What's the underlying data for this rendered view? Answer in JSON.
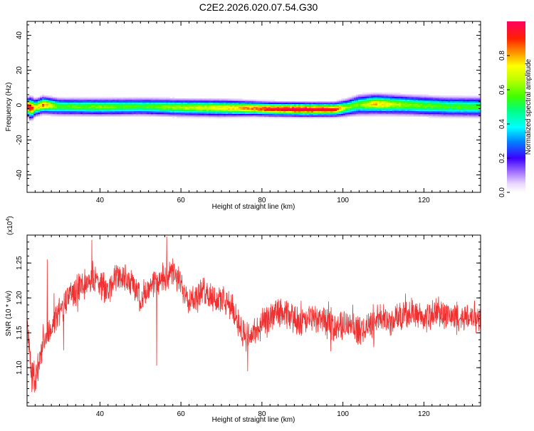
{
  "title": "C2E2.2026.020.07.54.G30",
  "chart_data": [
    {
      "type": "heatmap",
      "xlabel": "Height of straight line (km)",
      "ylabel": "Frequency (Hz)",
      "xlim": [
        22,
        134
      ],
      "ylim": [
        -50,
        48
      ],
      "xticks": [
        40,
        60,
        80,
        100,
        120
      ],
      "yticks": [
        -40,
        -20,
        0,
        20,
        40
      ],
      "colorbar": {
        "label": "Normalized spectral amplitude",
        "range": [
          0,
          1
        ],
        "ticks": [
          0.0,
          0.2,
          0.4,
          0.6,
          0.8
        ]
      },
      "ridge": {
        "height_km": [
          22,
          23,
          24,
          26,
          30,
          40,
          50,
          60,
          70,
          78,
          82,
          90,
          98,
          101,
          104,
          108,
          115,
          125,
          133
        ],
        "peak_frequency_hz": [
          -1,
          -2,
          -1.5,
          0,
          -1,
          -1.2,
          -1,
          -1.5,
          -1.8,
          -2,
          -2.4,
          -2.6,
          -2.6,
          -1.5,
          0,
          0.5,
          0,
          -1,
          -1.2
        ],
        "peak_amplitude": [
          1.0,
          0.95,
          0.7,
          0.85,
          0.55,
          0.6,
          0.55,
          0.65,
          0.72,
          0.85,
          0.95,
          1.0,
          0.95,
          0.6,
          0.6,
          0.78,
          0.62,
          0.55,
          0.55
        ],
        "halfwidth_hz": [
          3,
          4,
          3,
          3,
          3,
          3,
          3,
          3,
          3,
          2.6,
          2.5,
          2.5,
          2.5,
          3,
          3.5,
          3.5,
          3.5,
          3.5,
          3.5
        ]
      }
    },
    {
      "type": "line",
      "xlabel": "Height of straight line (km)",
      "ylabel": "SNR (10 * v/v)",
      "y_multiplier": "(x10",
      "y_multiplier_exp": "4",
      "y_multiplier_close": ")",
      "xlim": [
        22,
        134
      ],
      "ylim": [
        1.045,
        1.29
      ],
      "xticks": [
        40,
        60,
        80,
        100,
        120
      ],
      "yticks": [
        1.1,
        1.15,
        1.2,
        1.25
      ],
      "line_color": "#f03030",
      "series": [
        {
          "x": [
            22,
            23,
            24,
            26,
            28,
            30,
            32,
            34,
            36,
            38,
            40,
            42,
            44,
            46,
            48,
            50,
            52,
            54,
            56,
            58,
            60,
            62,
            64,
            66,
            68,
            70,
            72,
            74,
            76,
            78,
            80,
            82,
            84,
            86,
            88,
            90,
            92,
            94,
            96,
            98,
            100,
            102,
            104,
            106,
            108,
            110,
            112,
            114,
            116,
            118,
            120,
            122,
            124,
            126,
            128,
            130,
            132,
            134
          ],
          "values": [
            1.17,
            1.1,
            1.08,
            1.14,
            1.16,
            1.18,
            1.2,
            1.21,
            1.22,
            1.23,
            1.22,
            1.21,
            1.23,
            1.23,
            1.22,
            1.2,
            1.21,
            1.22,
            1.23,
            1.235,
            1.22,
            1.2,
            1.2,
            1.21,
            1.2,
            1.195,
            1.19,
            1.17,
            1.14,
            1.15,
            1.16,
            1.17,
            1.18,
            1.175,
            1.17,
            1.165,
            1.17,
            1.17,
            1.165,
            1.16,
            1.16,
            1.165,
            1.15,
            1.16,
            1.17,
            1.17,
            1.165,
            1.175,
            1.18,
            1.175,
            1.17,
            1.175,
            1.18,
            1.175,
            1.17,
            1.17,
            1.175,
            1.17
          ],
          "noise_amplitude": 0.018
        }
      ],
      "spikes": [
        {
          "x": 23.2,
          "y": 1.065
        },
        {
          "x": 24.0,
          "y": 1.075
        },
        {
          "x": 54.0,
          "y": 1.103
        },
        {
          "x": 56.5,
          "y": 1.288
        },
        {
          "x": 38.0,
          "y": 1.283
        },
        {
          "x": 76.5,
          "y": 1.095
        },
        {
          "x": 31.0,
          "y": 1.125
        },
        {
          "x": 27.0,
          "y": 1.255
        }
      ]
    }
  ]
}
